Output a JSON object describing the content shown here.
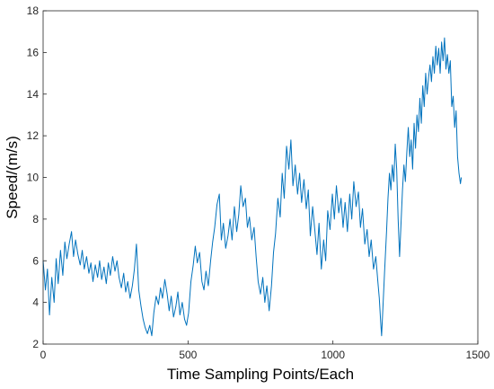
{
  "chart_data": {
    "type": "line",
    "title": "",
    "xlabel": "Time Sampling Points/Each",
    "ylabel": "Speed/(m/s)",
    "xlim": [
      0,
      1500
    ],
    "ylim": [
      2,
      18
    ],
    "xticks": [
      0,
      500,
      1000,
      1500
    ],
    "yticks": [
      2,
      4,
      6,
      8,
      10,
      12,
      14,
      16,
      18
    ],
    "grid": false,
    "legend": "none",
    "series": [
      {
        "color": "#0072BD",
        "points": [
          [
            0,
            6.0
          ],
          [
            8,
            4.6
          ],
          [
            15,
            5.6
          ],
          [
            22,
            3.4
          ],
          [
            30,
            5.2
          ],
          [
            38,
            4.0
          ],
          [
            45,
            6.1
          ],
          [
            52,
            4.9
          ],
          [
            60,
            6.5
          ],
          [
            68,
            5.3
          ],
          [
            75,
            6.9
          ],
          [
            82,
            6.1
          ],
          [
            90,
            6.8
          ],
          [
            98,
            7.4
          ],
          [
            105,
            6.2
          ],
          [
            112,
            7.0
          ],
          [
            120,
            6.3
          ],
          [
            128,
            5.8
          ],
          [
            135,
            6.5
          ],
          [
            142,
            5.6
          ],
          [
            150,
            6.2
          ],
          [
            158,
            5.4
          ],
          [
            165,
            5.9
          ],
          [
            172,
            5.0
          ],
          [
            180,
            5.8
          ],
          [
            188,
            5.2
          ],
          [
            195,
            6.0
          ],
          [
            202,
            5.1
          ],
          [
            210,
            5.7
          ],
          [
            218,
            4.9
          ],
          [
            225,
            5.9
          ],
          [
            232,
            5.3
          ],
          [
            240,
            6.2
          ],
          [
            248,
            5.5
          ],
          [
            255,
            6.0
          ],
          [
            262,
            5.2
          ],
          [
            270,
            4.7
          ],
          [
            278,
            5.4
          ],
          [
            285,
            4.5
          ],
          [
            292,
            5.0
          ],
          [
            300,
            4.2
          ],
          [
            308,
            4.8
          ],
          [
            315,
            5.6
          ],
          [
            322,
            6.8
          ],
          [
            330,
            4.6
          ],
          [
            338,
            3.8
          ],
          [
            345,
            3.2
          ],
          [
            352,
            2.8
          ],
          [
            360,
            2.5
          ],
          [
            368,
            2.9
          ],
          [
            375,
            2.4
          ],
          [
            382,
            3.5
          ],
          [
            390,
            4.3
          ],
          [
            398,
            3.9
          ],
          [
            405,
            4.7
          ],
          [
            412,
            4.2
          ],
          [
            420,
            5.1
          ],
          [
            428,
            4.4
          ],
          [
            435,
            3.6
          ],
          [
            442,
            4.3
          ],
          [
            450,
            3.3
          ],
          [
            458,
            3.8
          ],
          [
            465,
            4.5
          ],
          [
            472,
            3.4
          ],
          [
            480,
            4.0
          ],
          [
            488,
            3.2
          ],
          [
            495,
            2.9
          ],
          [
            502,
            3.5
          ],
          [
            510,
            5.0
          ],
          [
            518,
            5.8
          ],
          [
            525,
            6.7
          ],
          [
            532,
            5.9
          ],
          [
            540,
            6.4
          ],
          [
            548,
            5.0
          ],
          [
            555,
            4.6
          ],
          [
            562,
            5.5
          ],
          [
            570,
            4.8
          ],
          [
            578,
            6.0
          ],
          [
            585,
            6.9
          ],
          [
            592,
            7.6
          ],
          [
            600,
            8.7
          ],
          [
            608,
            9.2
          ],
          [
            615,
            7.0
          ],
          [
            622,
            7.8
          ],
          [
            630,
            6.6
          ],
          [
            638,
            7.2
          ],
          [
            645,
            8.0
          ],
          [
            652,
            7.0
          ],
          [
            660,
            8.6
          ],
          [
            668,
            7.4
          ],
          [
            675,
            8.2
          ],
          [
            682,
            9.6
          ],
          [
            690,
            8.6
          ],
          [
            698,
            9.0
          ],
          [
            705,
            7.6
          ],
          [
            712,
            8.1
          ],
          [
            720,
            7.0
          ],
          [
            728,
            7.6
          ],
          [
            735,
            6.2
          ],
          [
            742,
            5.0
          ],
          [
            750,
            4.4
          ],
          [
            758,
            5.2
          ],
          [
            765,
            4.0
          ],
          [
            772,
            4.8
          ],
          [
            780,
            3.6
          ],
          [
            788,
            4.8
          ],
          [
            795,
            6.4
          ],
          [
            802,
            7.3
          ],
          [
            810,
            9.0
          ],
          [
            818,
            8.1
          ],
          [
            825,
            10.2
          ],
          [
            832,
            9.0
          ],
          [
            840,
            11.5
          ],
          [
            848,
            10.4
          ],
          [
            855,
            11.8
          ],
          [
            862,
            9.6
          ],
          [
            870,
            10.6
          ],
          [
            878,
            9.2
          ],
          [
            885,
            10.2
          ],
          [
            892,
            8.8
          ],
          [
            900,
            9.9
          ],
          [
            908,
            8.5
          ],
          [
            915,
            9.4
          ],
          [
            922,
            7.2
          ],
          [
            930,
            8.6
          ],
          [
            938,
            7.4
          ],
          [
            945,
            6.3
          ],
          [
            952,
            7.8
          ],
          [
            960,
            5.6
          ],
          [
            968,
            7.0
          ],
          [
            975,
            6.0
          ],
          [
            982,
            8.4
          ],
          [
            990,
            7.5
          ],
          [
            998,
            9.2
          ],
          [
            1005,
            8.0
          ],
          [
            1012,
            9.6
          ],
          [
            1020,
            8.3
          ],
          [
            1028,
            9.0
          ],
          [
            1035,
            7.6
          ],
          [
            1042,
            8.8
          ],
          [
            1050,
            7.4
          ],
          [
            1058,
            9.2
          ],
          [
            1065,
            8.0
          ],
          [
            1072,
            9.8
          ],
          [
            1080,
            8.6
          ],
          [
            1088,
            9.3
          ],
          [
            1095,
            7.6
          ],
          [
            1102,
            8.5
          ],
          [
            1110,
            6.8
          ],
          [
            1118,
            7.5
          ],
          [
            1125,
            6.2
          ],
          [
            1132,
            7.0
          ],
          [
            1140,
            5.6
          ],
          [
            1148,
            6.2
          ],
          [
            1155,
            5.0
          ],
          [
            1160,
            4.2
          ],
          [
            1165,
            3.0
          ],
          [
            1168,
            2.4
          ],
          [
            1172,
            3.6
          ],
          [
            1178,
            5.4
          ],
          [
            1185,
            7.4
          ],
          [
            1190,
            9.0
          ],
          [
            1195,
            10.2
          ],
          [
            1200,
            9.4
          ],
          [
            1205,
            10.6
          ],
          [
            1210,
            9.8
          ],
          [
            1215,
            11.6
          ],
          [
            1220,
            10.4
          ],
          [
            1225,
            8.0
          ],
          [
            1230,
            6.2
          ],
          [
            1235,
            7.8
          ],
          [
            1240,
            9.4
          ],
          [
            1245,
            10.6
          ],
          [
            1250,
            9.8
          ],
          [
            1255,
            11.2
          ],
          [
            1260,
            12.4
          ],
          [
            1265,
            11.0
          ],
          [
            1270,
            11.8
          ],
          [
            1275,
            10.4
          ],
          [
            1280,
            12.6
          ],
          [
            1285,
            11.4
          ],
          [
            1290,
            13.0
          ],
          [
            1295,
            12.2
          ],
          [
            1300,
            13.8
          ],
          [
            1305,
            12.6
          ],
          [
            1310,
            14.4
          ],
          [
            1315,
            13.4
          ],
          [
            1320,
            15.0
          ],
          [
            1325,
            14.0
          ],
          [
            1330,
            14.8
          ],
          [
            1335,
            15.4
          ],
          [
            1340,
            14.6
          ],
          [
            1345,
            15.8
          ],
          [
            1350,
            15.0
          ],
          [
            1355,
            16.3
          ],
          [
            1360,
            15.4
          ],
          [
            1365,
            16.2
          ],
          [
            1370,
            15.0
          ],
          [
            1375,
            16.5
          ],
          [
            1380,
            15.6
          ],
          [
            1385,
            16.7
          ],
          [
            1390,
            15.2
          ],
          [
            1395,
            15.9
          ],
          [
            1400,
            15.0
          ],
          [
            1405,
            15.6
          ],
          [
            1410,
            13.4
          ],
          [
            1415,
            13.9
          ],
          [
            1420,
            12.4
          ],
          [
            1425,
            13.2
          ],
          [
            1430,
            11.0
          ],
          [
            1435,
            10.2
          ],
          [
            1440,
            9.7
          ],
          [
            1443,
            10.0
          ]
        ]
      }
    ]
  }
}
